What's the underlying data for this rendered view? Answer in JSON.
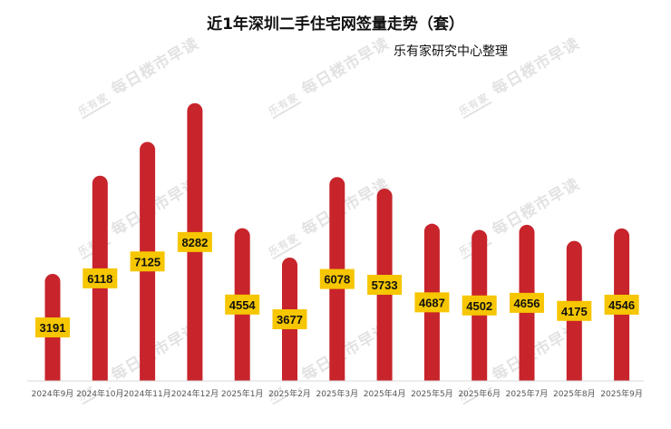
{
  "chart_data": {
    "type": "bar",
    "title": "近1年深圳二手住宅网签量走势（套）",
    "subtitle": "乐有家研究中心整理",
    "categories": [
      "2024年9月",
      "2024年10月",
      "2024年11月",
      "2024年12月",
      "2025年1月",
      "2025年2月",
      "2025年3月",
      "2025年4月",
      "2025年5月",
      "2025年6月",
      "2025年7月",
      "2025年8月",
      "2025年9月"
    ],
    "values": [
      3191,
      6118,
      7125,
      8282,
      4554,
      3677,
      6078,
      5733,
      4687,
      4502,
      4656,
      4175,
      4546
    ],
    "ylim": [
      0,
      9000
    ],
    "grid": false,
    "bar_color": "#c8242b",
    "label_bg": "#f6c600",
    "label_color": "#111111"
  },
  "watermark": {
    "logo": "乐有家",
    "text": "每日楼市早读"
  }
}
